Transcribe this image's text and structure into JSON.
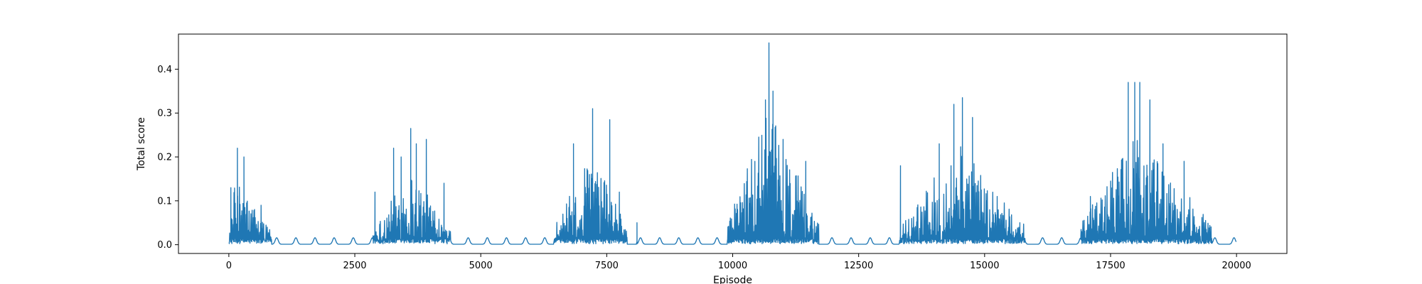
{
  "chart_data": {
    "type": "line",
    "title": "",
    "xlabel": "Episode",
    "ylabel": "Total score",
    "xlim": [
      -1000,
      21000
    ],
    "ylim": [
      -0.02,
      0.48
    ],
    "xticks": [
      0,
      2500,
      5000,
      7500,
      10000,
      12500,
      15000,
      17500,
      20000
    ],
    "yticks": [
      0.0,
      0.1,
      0.2,
      0.3,
      0.4
    ],
    "grid": false,
    "legend": "none",
    "color": "#1f77b4",
    "series": [
      {
        "x_start": 0,
        "x_end": 20000,
        "bursts": [
          {
            "x_start": 0,
            "x_end": 850,
            "peak_x": 120,
            "max": 0.22
          },
          {
            "x_start": 2850,
            "x_end": 4400,
            "peak_x": 3600,
            "max": 0.26
          },
          {
            "x_start": 6450,
            "x_end": 7900,
            "peak_x": 7200,
            "max": 0.31
          },
          {
            "x_start": 9900,
            "x_end": 11700,
            "peak_x": 10700,
            "max": 0.46
          },
          {
            "x_start": 13300,
            "x_end": 15800,
            "peak_x": 14500,
            "max": 0.34
          },
          {
            "x_start": 16900,
            "x_end": 19500,
            "peak_x": 18000,
            "max": 0.37
          }
        ],
        "spikes": [
          {
            "x": 40,
            "y": 0.13
          },
          {
            "x": 170,
            "y": 0.22
          },
          {
            "x": 300,
            "y": 0.2
          },
          {
            "x": 640,
            "y": 0.09
          },
          {
            "x": 2900,
            "y": 0.12
          },
          {
            "x": 3270,
            "y": 0.22
          },
          {
            "x": 3420,
            "y": 0.2
          },
          {
            "x": 3610,
            "y": 0.265
          },
          {
            "x": 3720,
            "y": 0.23
          },
          {
            "x": 3920,
            "y": 0.24
          },
          {
            "x": 4270,
            "y": 0.14
          },
          {
            "x": 6840,
            "y": 0.23
          },
          {
            "x": 7220,
            "y": 0.31
          },
          {
            "x": 7560,
            "y": 0.285
          },
          {
            "x": 7750,
            "y": 0.12
          },
          {
            "x": 8100,
            "y": 0.05
          },
          {
            "x": 10440,
            "y": 0.19
          },
          {
            "x": 10650,
            "y": 0.33
          },
          {
            "x": 10720,
            "y": 0.46
          },
          {
            "x": 10800,
            "y": 0.35
          },
          {
            "x": 11000,
            "y": 0.24
          },
          {
            "x": 11450,
            "y": 0.19
          },
          {
            "x": 13330,
            "y": 0.18
          },
          {
            "x": 14100,
            "y": 0.23
          },
          {
            "x": 14390,
            "y": 0.32
          },
          {
            "x": 14560,
            "y": 0.335
          },
          {
            "x": 14760,
            "y": 0.29
          },
          {
            "x": 15250,
            "y": 0.11
          },
          {
            "x": 15700,
            "y": 0.05
          },
          {
            "x": 17100,
            "y": 0.11
          },
          {
            "x": 17850,
            "y": 0.37
          },
          {
            "x": 17980,
            "y": 0.37
          },
          {
            "x": 18080,
            "y": 0.37
          },
          {
            "x": 18280,
            "y": 0.33
          },
          {
            "x": 18540,
            "y": 0.23
          },
          {
            "x": 18960,
            "y": 0.19
          },
          {
            "x": 19400,
            "y": 0.035
          }
        ],
        "quiet_bumps_y": 0.015,
        "quiet_bump_period": 380
      }
    ]
  }
}
